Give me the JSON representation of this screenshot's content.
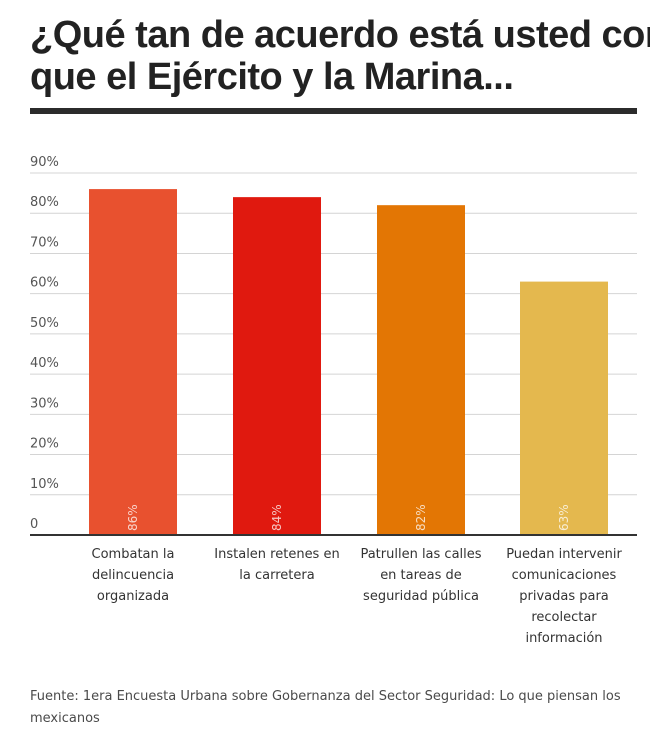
{
  "title_lines": [
    "¿Qué tan de acuerdo está usted con",
    "que el Ejército y la Marina..."
  ],
  "source": "Fuente:  1era Encuesta Urbana sobre Gobernanza del Sector Seguridad: Lo que piensan los mexicanos",
  "chart_data": {
    "type": "bar",
    "categories": [
      [
        "Combatan la",
        "delincuencia",
        "organizada"
      ],
      [
        "Instalen retenes en",
        "la carretera"
      ],
      [
        "Patrullen las calles",
        "en tareas de",
        "seguridad pública"
      ],
      [
        "Puedan intervenir",
        "comunicaciones",
        "privadas para",
        "recolectar",
        "información"
      ]
    ],
    "values": [
      86,
      84,
      82,
      63
    ],
    "data_labels": [
      "86%",
      "84%",
      "82%",
      "63%"
    ],
    "colors": [
      "#e8512f",
      "#e0190f",
      "#e37604",
      "#e4b84e"
    ],
    "ylim": [
      0,
      90
    ],
    "yticks": [
      0,
      10,
      20,
      30,
      40,
      50,
      60,
      70,
      80,
      90
    ],
    "ytick_labels": [
      "0",
      "10%",
      "20%",
      "30%",
      "40%",
      "50%",
      "60%",
      "70%",
      "80%",
      "90%"
    ],
    "grid": true
  }
}
